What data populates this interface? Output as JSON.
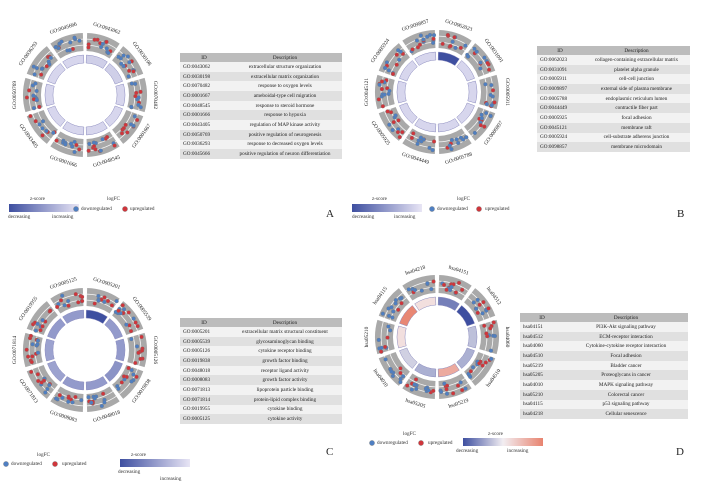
{
  "legend_text": {
    "zscore": "z-score",
    "decreasing": "decreasing",
    "increasing": "increasing",
    "logfc": "logFC",
    "downregulated": "downregulated",
    "upregulated": "upregulated"
  },
  "table_headers": {
    "id": "ID",
    "description": "Description"
  },
  "colors": {
    "down": "#4f7fc2",
    "up": "#d0353b",
    "bar_dark": "#3e4fa0",
    "bar_light": "#e8e5f5",
    "sector": "#a9a9a9",
    "up_bar": "#e8836f"
  },
  "chart_data": [
    {
      "type": "table",
      "panel": "A",
      "rows": [
        {
          "id": "GO:0043062",
          "description": "extracellular structure organization"
        },
        {
          "id": "GO:0030198",
          "description": "extracellular matrix organization"
        },
        {
          "id": "GO:0070482",
          "description": "response to oxygen levels"
        },
        {
          "id": "GO:0001667",
          "description": "ameboidal-type cell migration"
        },
        {
          "id": "GO:0048545",
          "description": "response to steroid hormone"
        },
        {
          "id": "GO:0001666",
          "description": "response to hypoxia"
        },
        {
          "id": "GO:0043405",
          "description": "regulation of MAP kinase activity"
        },
        {
          "id": "GO:0050769",
          "description": "positive regulation of neurogenesis"
        },
        {
          "id": "GO:0036293",
          "description": "response to decreased oxygen levels"
        },
        {
          "id": "GO:0045666",
          "description": "positive regulation of neuron differentiation"
        }
      ],
      "sector_labels": [
        "GO:0043062",
        "GO:0030198",
        "GO:0070482",
        "GO:0001667",
        "GO:0048545",
        "GO:0001666",
        "GO:0043405",
        "GO:0050769",
        "GO:0036293",
        "GO:0045666"
      ],
      "zscore_levels": [
        0.15,
        0.15,
        0.1,
        0.1,
        0.1,
        0.1,
        0.1,
        0.1,
        0.1,
        0.1
      ]
    },
    {
      "type": "table",
      "panel": "B",
      "rows": [
        {
          "id": "GO:0062023",
          "description": "collagen-containing extracellular matrix"
        },
        {
          "id": "GO:0031091",
          "description": "platelet alpha granule"
        },
        {
          "id": "GO:0005911",
          "description": "cell-cell junction"
        },
        {
          "id": "GO:0009897",
          "description": "external side of plasma membrane"
        },
        {
          "id": "GO:0005788",
          "description": "endoplasmic reticulum lumen"
        },
        {
          "id": "GO:0044449",
          "description": "contractile fiber part"
        },
        {
          "id": "GO:0005925",
          "description": "focal adhesion"
        },
        {
          "id": "GO:0045121",
          "description": "membrane raft"
        },
        {
          "id": "GO:0005924",
          "description": "cell-substrate adherens junction"
        },
        {
          "id": "GO:0098857",
          "description": "membrane microdomain"
        }
      ],
      "sector_labels": [
        "GO:0062023",
        "GO:0031091",
        "GO:0005911",
        "GO:0009897",
        "GO:0005788",
        "GO:0044449",
        "GO:0005925",
        "GO:0045121",
        "GO:0005924",
        "GO:0098857"
      ],
      "zscore_levels": [
        1.0,
        0.1,
        0.1,
        0.1,
        0.1,
        0.1,
        0.1,
        0.1,
        0.1,
        0.1
      ]
    },
    {
      "type": "table",
      "panel": "C",
      "rows": [
        {
          "id": "GO:0005201",
          "description": "extracellular matrix structural constituent"
        },
        {
          "id": "GO:0005539",
          "description": "glycosaminoglycan binding"
        },
        {
          "id": "GO:0005126",
          "description": "cytokine receptor binding"
        },
        {
          "id": "GO:0019838",
          "description": "growth factor binding"
        },
        {
          "id": "GO:0048018",
          "description": "receptor ligand activity"
        },
        {
          "id": "GO:0008083",
          "description": "growth factor activity"
        },
        {
          "id": "GO:0071813",
          "description": "lipoprotein particle binding"
        },
        {
          "id": "GO:0071814",
          "description": "protein-lipid complex binding"
        },
        {
          "id": "GO:0019955",
          "description": "cytokine binding"
        },
        {
          "id": "GO:0005125",
          "description": "cytokine activity"
        }
      ],
      "sector_labels": [
        "GO:0005201",
        "GO:0005539",
        "GO:0005126",
        "GO:0019838",
        "GO:0048018",
        "GO:0008083",
        "GO:0071813",
        "GO:0071814",
        "GO:0019955",
        "GO:0005125"
      ],
      "zscore_levels": [
        1.0,
        0.5,
        0.5,
        0.55,
        0.5,
        0.5,
        0.45,
        0.45,
        0.5,
        0.5
      ]
    },
    {
      "type": "table",
      "panel": "D",
      "rows": [
        {
          "id": "hsa04151",
          "description": "PI3K-Akt signaling pathway"
        },
        {
          "id": "hsa04512",
          "description": "ECM-receptor interaction"
        },
        {
          "id": "hsa04060",
          "description": "Cytokine-cytokine receptor interaction"
        },
        {
          "id": "hsa04510",
          "description": "Focal adhesion"
        },
        {
          "id": "hsa05219",
          "description": "Bladder cancer"
        },
        {
          "id": "hsa05205",
          "description": "Proteoglycans in cancer"
        },
        {
          "id": "hsa04010",
          "description": "MAPK signaling pathway"
        },
        {
          "id": "hsa05210",
          "description": "Colorectal cancer"
        },
        {
          "id": "hsa04115",
          "description": "p53 signaling pathway"
        },
        {
          "id": "hsa04218",
          "description": "Cellular senescence"
        }
      ],
      "sector_labels": [
        "hsa04151",
        "hsa04512",
        "hsa04060",
        "hsa04510",
        "hsa05219",
        "hsa05205",
        "hsa04010",
        "hsa05210",
        "hsa04115",
        "hsa04218"
      ],
      "zscore_levels": [
        -0.7,
        -1.0,
        -0.3,
        -0.4,
        0.4,
        -0.4,
        -0.2,
        0.1,
        0.6,
        0.1
      ]
    }
  ]
}
